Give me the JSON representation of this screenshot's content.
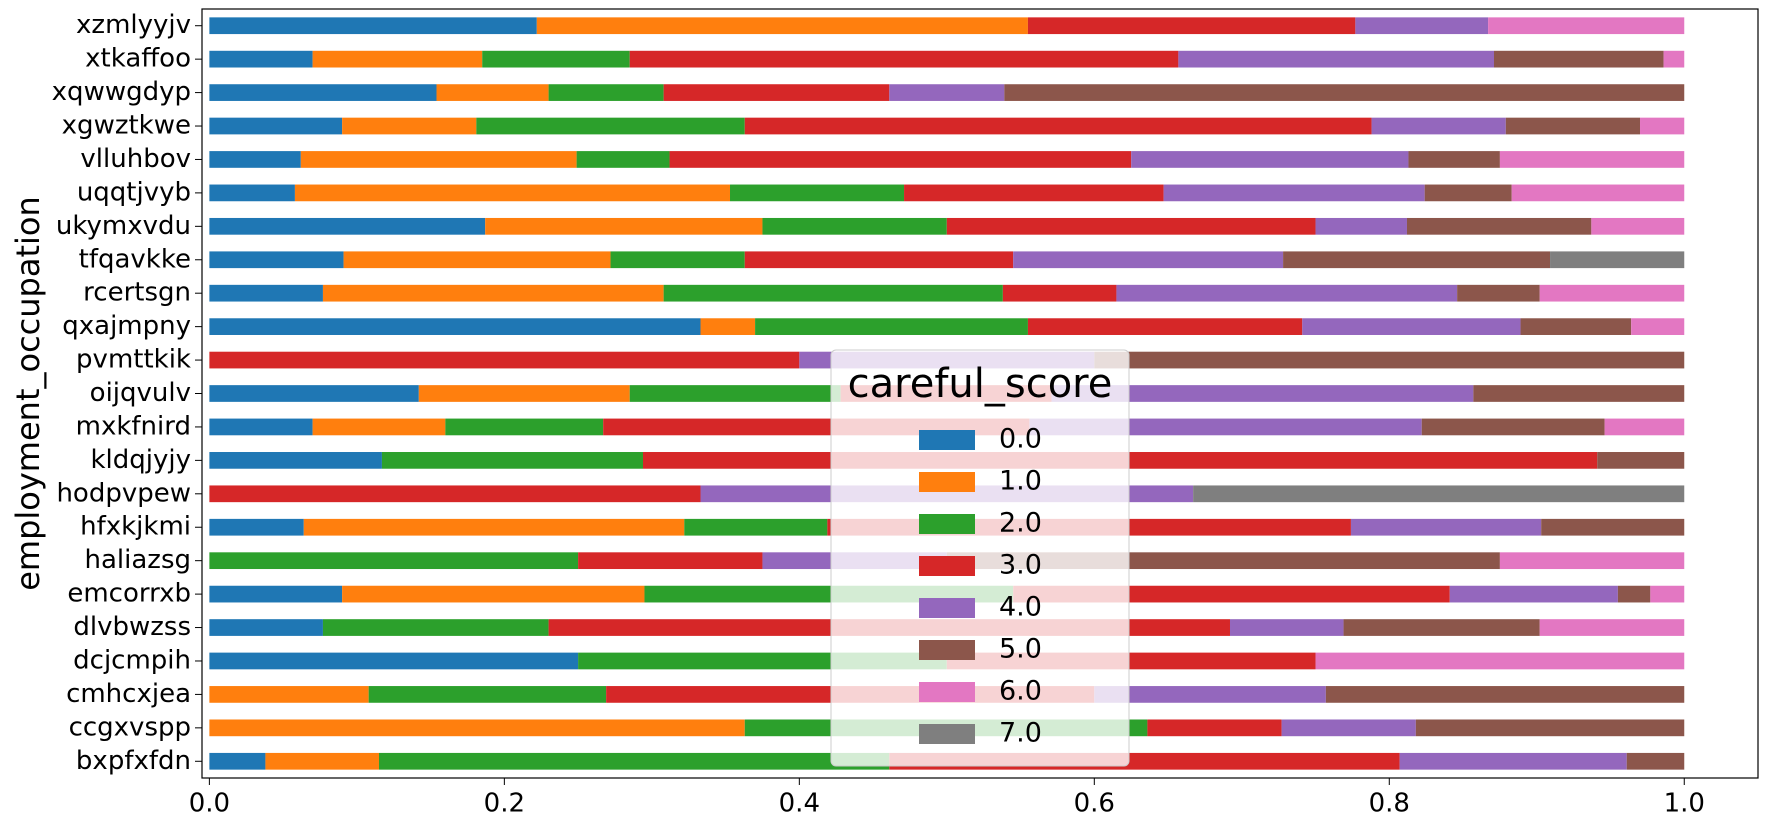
{
  "chart_data": {
    "type": "barh_stacked",
    "ylabel": "employment_occupation",
    "legend_title": "careful_score",
    "legend_loc": "lower center",
    "categories": [
      "bxpfxfdn",
      "ccgxvspp",
      "cmhcxjea",
      "dcjcmpih",
      "dlvbwzss",
      "emcorrxb",
      "haliazsg",
      "hfxkjkmi",
      "hodpvpew",
      "kldqjyjy",
      "mxkfnird",
      "oijqvulv",
      "pvmttkik",
      "qxajmpny",
      "rcertsgn",
      "tfqavkke",
      "ukymxvdu",
      "uqqtjvyb",
      "vlluhbov",
      "xgwztkwe",
      "xqwwgdyp",
      "xtkaffoo",
      "xzmlyyjv"
    ],
    "series": [
      {
        "name": "0.0",
        "color": "#1f77b4",
        "values": [
          0.038,
          0,
          0,
          0.25,
          0.077,
          0.09,
          0,
          0.064,
          0,
          0.117,
          0.07,
          0.142,
          0,
          0.333,
          0.077,
          0.091,
          0.187,
          0.058,
          0.062,
          0.09,
          0.154,
          0.07,
          0.222
        ]
      },
      {
        "name": "1.0",
        "color": "#ff7f0e",
        "values": [
          0.077,
          0.363,
          0.108,
          0,
          0,
          0.205,
          0,
          0.258,
          0,
          0,
          0.09,
          0.143,
          0,
          0.037,
          0.231,
          0.181,
          0.188,
          0.295,
          0.187,
          0.091,
          0.076,
          0.115,
          0.333
        ]
      },
      {
        "name": "2.0",
        "color": "#2ca02c",
        "values": [
          0.346,
          0.273,
          0.161,
          0.25,
          0.153,
          0.25,
          0.25,
          0.097,
          0,
          0.177,
          0.107,
          0.143,
          0,
          0.185,
          0.23,
          0.091,
          0.125,
          0.118,
          0.063,
          0.182,
          0.078,
          0.1,
          0
        ]
      },
      {
        "name": "3.0",
        "color": "#d62728",
        "values": [
          0.346,
          0.091,
          0.331,
          0.25,
          0.462,
          0.296,
          0.125,
          0.355,
          0.333,
          0.647,
          0.289,
          0.143,
          0.4,
          0.186,
          0.077,
          0.182,
          0.25,
          0.176,
          0.313,
          0.425,
          0.153,
          0.372,
          0.222
        ]
      },
      {
        "name": "4.0",
        "color": "#9467bd",
        "values": [
          0.154,
          0.091,
          0.157,
          0,
          0.077,
          0.114,
          0.125,
          0.129,
          0.334,
          0,
          0.266,
          0.286,
          0.2,
          0.148,
          0.231,
          0.183,
          0.062,
          0.177,
          0.188,
          0.091,
          0.078,
          0.214,
          0.09
        ]
      },
      {
        "name": "5.0",
        "color": "#8c564b",
        "values": [
          0.039,
          0.182,
          0.243,
          0,
          0.133,
          0.022,
          0.375,
          0.097,
          0,
          0.059,
          0.124,
          0.143,
          0.4,
          0.075,
          0.056,
          0.181,
          0.125,
          0.059,
          0.062,
          0.091,
          0.461,
          0.115,
          0
        ]
      },
      {
        "name": "6.0",
        "color": "#e377c2",
        "values": [
          0,
          0,
          0,
          0.25,
          0.098,
          0.023,
          0.125,
          0,
          0,
          0,
          0.054,
          0,
          0,
          0.036,
          0.098,
          0,
          0.063,
          0.117,
          0.125,
          0.03,
          0,
          0.014,
          0.133
        ]
      },
      {
        "name": "7.0",
        "color": "#7f7f7f",
        "values": [
          0,
          0,
          0,
          0,
          0,
          0,
          0,
          0,
          0.333,
          0,
          0,
          0,
          0,
          0,
          0,
          0.091,
          0,
          0,
          0,
          0,
          0,
          0,
          0
        ]
      }
    ],
    "xlim": [
      -0.005,
      1.05
    ],
    "xticks": [
      {
        "value": 0,
        "label": "0.0"
      },
      {
        "value": 0.2,
        "label": "0.2"
      },
      {
        "value": 0.4,
        "label": "0.4"
      },
      {
        "value": 0.6,
        "label": "0.6"
      },
      {
        "value": 0.8,
        "label": "0.8"
      },
      {
        "value": 1,
        "label": "1.0"
      }
    ],
    "grid": false
  }
}
